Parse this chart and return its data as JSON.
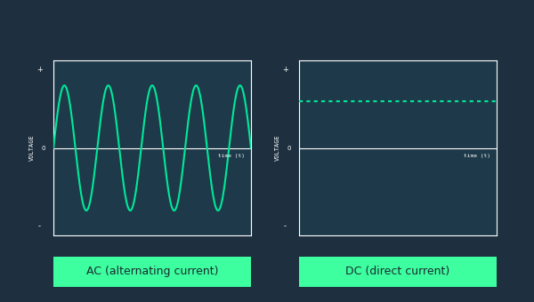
{
  "bg_color": "#1e3040",
  "plot_bg_color": "#1e3a4a",
  "axes_edge_color": "#ffffff",
  "line_color": "#00e89a",
  "label_color": "#ffffff",
  "label_btn_color": "#3dffa0",
  "label_btn_text_color": "#1a2a30",
  "ac_label": "AC (alternating current)",
  "dc_label": "DC (direct current)",
  "voltage_label": "VOLTAGE",
  "time_label": "time (t)",
  "zero_label": "0",
  "plus_label": "+",
  "minus_label": "-",
  "ac_freq": 4.5,
  "dc_level": 0.75,
  "title_fontsize": 9,
  "axis_label_fontsize": 5,
  "tick_label_fontsize": 5
}
